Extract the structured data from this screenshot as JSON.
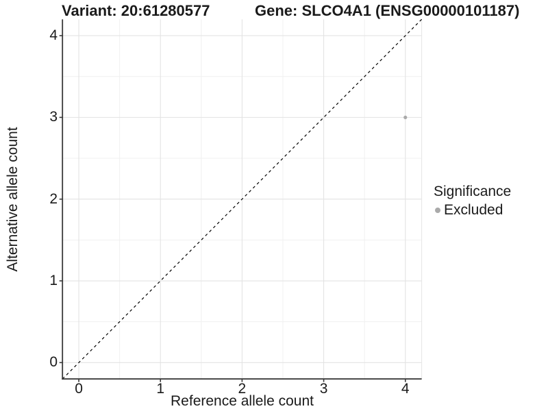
{
  "chart_data": {
    "type": "scatter",
    "title_left": "Variant: 20:61280577",
    "title_right": "Gene: SLCO4A1 (ENSG00000101187)",
    "xlabel": "Reference allele count",
    "ylabel": "Alternative allele count",
    "xlim": [
      -0.2,
      4.2
    ],
    "ylim": [
      -0.2,
      4.2
    ],
    "x_ticks": [
      0,
      1,
      2,
      3,
      4
    ],
    "y_ticks": [
      0,
      1,
      2,
      3,
      4
    ],
    "grid": "major and minor gridlines, white background",
    "identity_line": {
      "style": "dashed",
      "color": "#000000",
      "x1": -0.2,
      "y1": -0.2,
      "x2": 4.2,
      "y2": 4.2
    },
    "points": [
      {
        "x": 4,
        "y": 3,
        "significance": "Excluded",
        "color": "#aaaaaa",
        "radius": 2.6
      }
    ],
    "legend": {
      "title": "Significance",
      "position": "right",
      "items": [
        {
          "label": "Excluded",
          "marker": "circle-icon",
          "color": "#aaaaaa"
        }
      ]
    },
    "colors": {
      "axis_line": "#383838",
      "tick_mark": "#383838",
      "text": "#1a1a1a",
      "grid_major": "#e3e3e3",
      "grid_minor": "#f0f0f0",
      "panel_edge": "#e6e6e6",
      "background": "#ffffff"
    }
  }
}
